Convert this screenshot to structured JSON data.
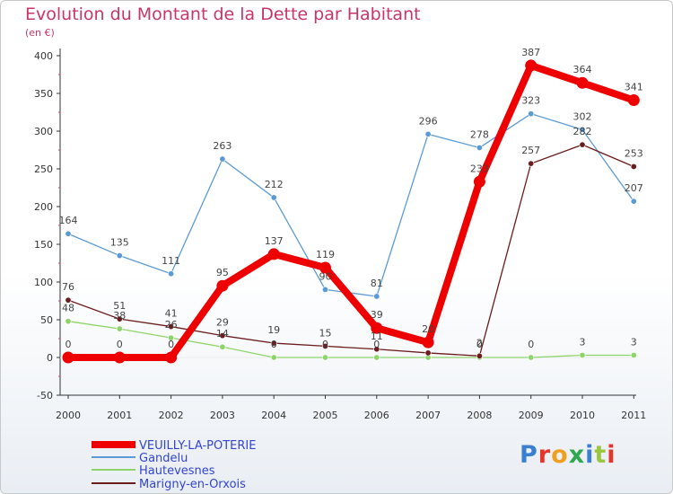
{
  "chart_data": {
    "type": "line",
    "title": "Evolution du Montant de la Dette par Habitant",
    "subtitle": "(en €)",
    "x": [
      "2000",
      "2001",
      "2002",
      "2003",
      "2004",
      "2005",
      "2006",
      "2007",
      "2008",
      "2009",
      "2010",
      "2011"
    ],
    "ylim": [
      -50,
      400
    ],
    "yticks": [
      -50,
      0,
      50,
      100,
      150,
      200,
      250,
      300,
      350,
      400
    ],
    "grid": false,
    "legend_position": "bottom-left",
    "series": [
      {
        "name": "Gandelu",
        "color": "#5b9bd5",
        "values": [
          164,
          135,
          111,
          263,
          212,
          90,
          81,
          296,
          278,
          323,
          302,
          207
        ]
      },
      {
        "name": "Hautevesnes",
        "color": "#8fd46b",
        "values": [
          48,
          38,
          26,
          14,
          0,
          0,
          0,
          0,
          0,
          0,
          3,
          3
        ]
      },
      {
        "name": "Marigny-en-Orxois",
        "color": "#6b1c1c",
        "values": [
          76,
          51,
          41,
          29,
          19,
          15,
          11,
          6,
          2,
          257,
          282,
          253
        ]
      },
      {
        "name": "VEUILLY-LA-POTERIE",
        "color": "#ee0000",
        "values": [
          0,
          0,
          0,
          95,
          137,
          119,
          39,
          20,
          233,
          387,
          364,
          341
        ]
      }
    ],
    "data_labels": [
      {
        "series": "Gandelu",
        "labels": [
          "164",
          "135",
          "111",
          "263",
          "212",
          "90",
          "81",
          "296",
          "278",
          "323",
          "302",
          "207"
        ]
      },
      {
        "series": "Hautevesnes",
        "labels": [
          "48",
          "38",
          "26",
          "14",
          "0",
          "0",
          "0",
          "",
          "0",
          "0",
          "3",
          "3"
        ]
      },
      {
        "series": "Marigny-en-Orxois",
        "labels": [
          "76",
          "51",
          "41",
          "29",
          "19",
          "15",
          "11",
          "",
          "2",
          "257",
          "282",
          "253"
        ]
      },
      {
        "series": "VEUILLY-LA-POTERIE",
        "labels": [
          "0",
          "0",
          "0",
          "95",
          "137",
          "119",
          "39",
          "20",
          "233",
          "387",
          "364",
          "341"
        ]
      }
    ],
    "legend": [
      "VEUILLY-LA-POTERIE",
      "Gandelu",
      "Hautevesnes",
      "Marigny-en-Orxois"
    ]
  },
  "logo": {
    "text": "Proxiti"
  }
}
